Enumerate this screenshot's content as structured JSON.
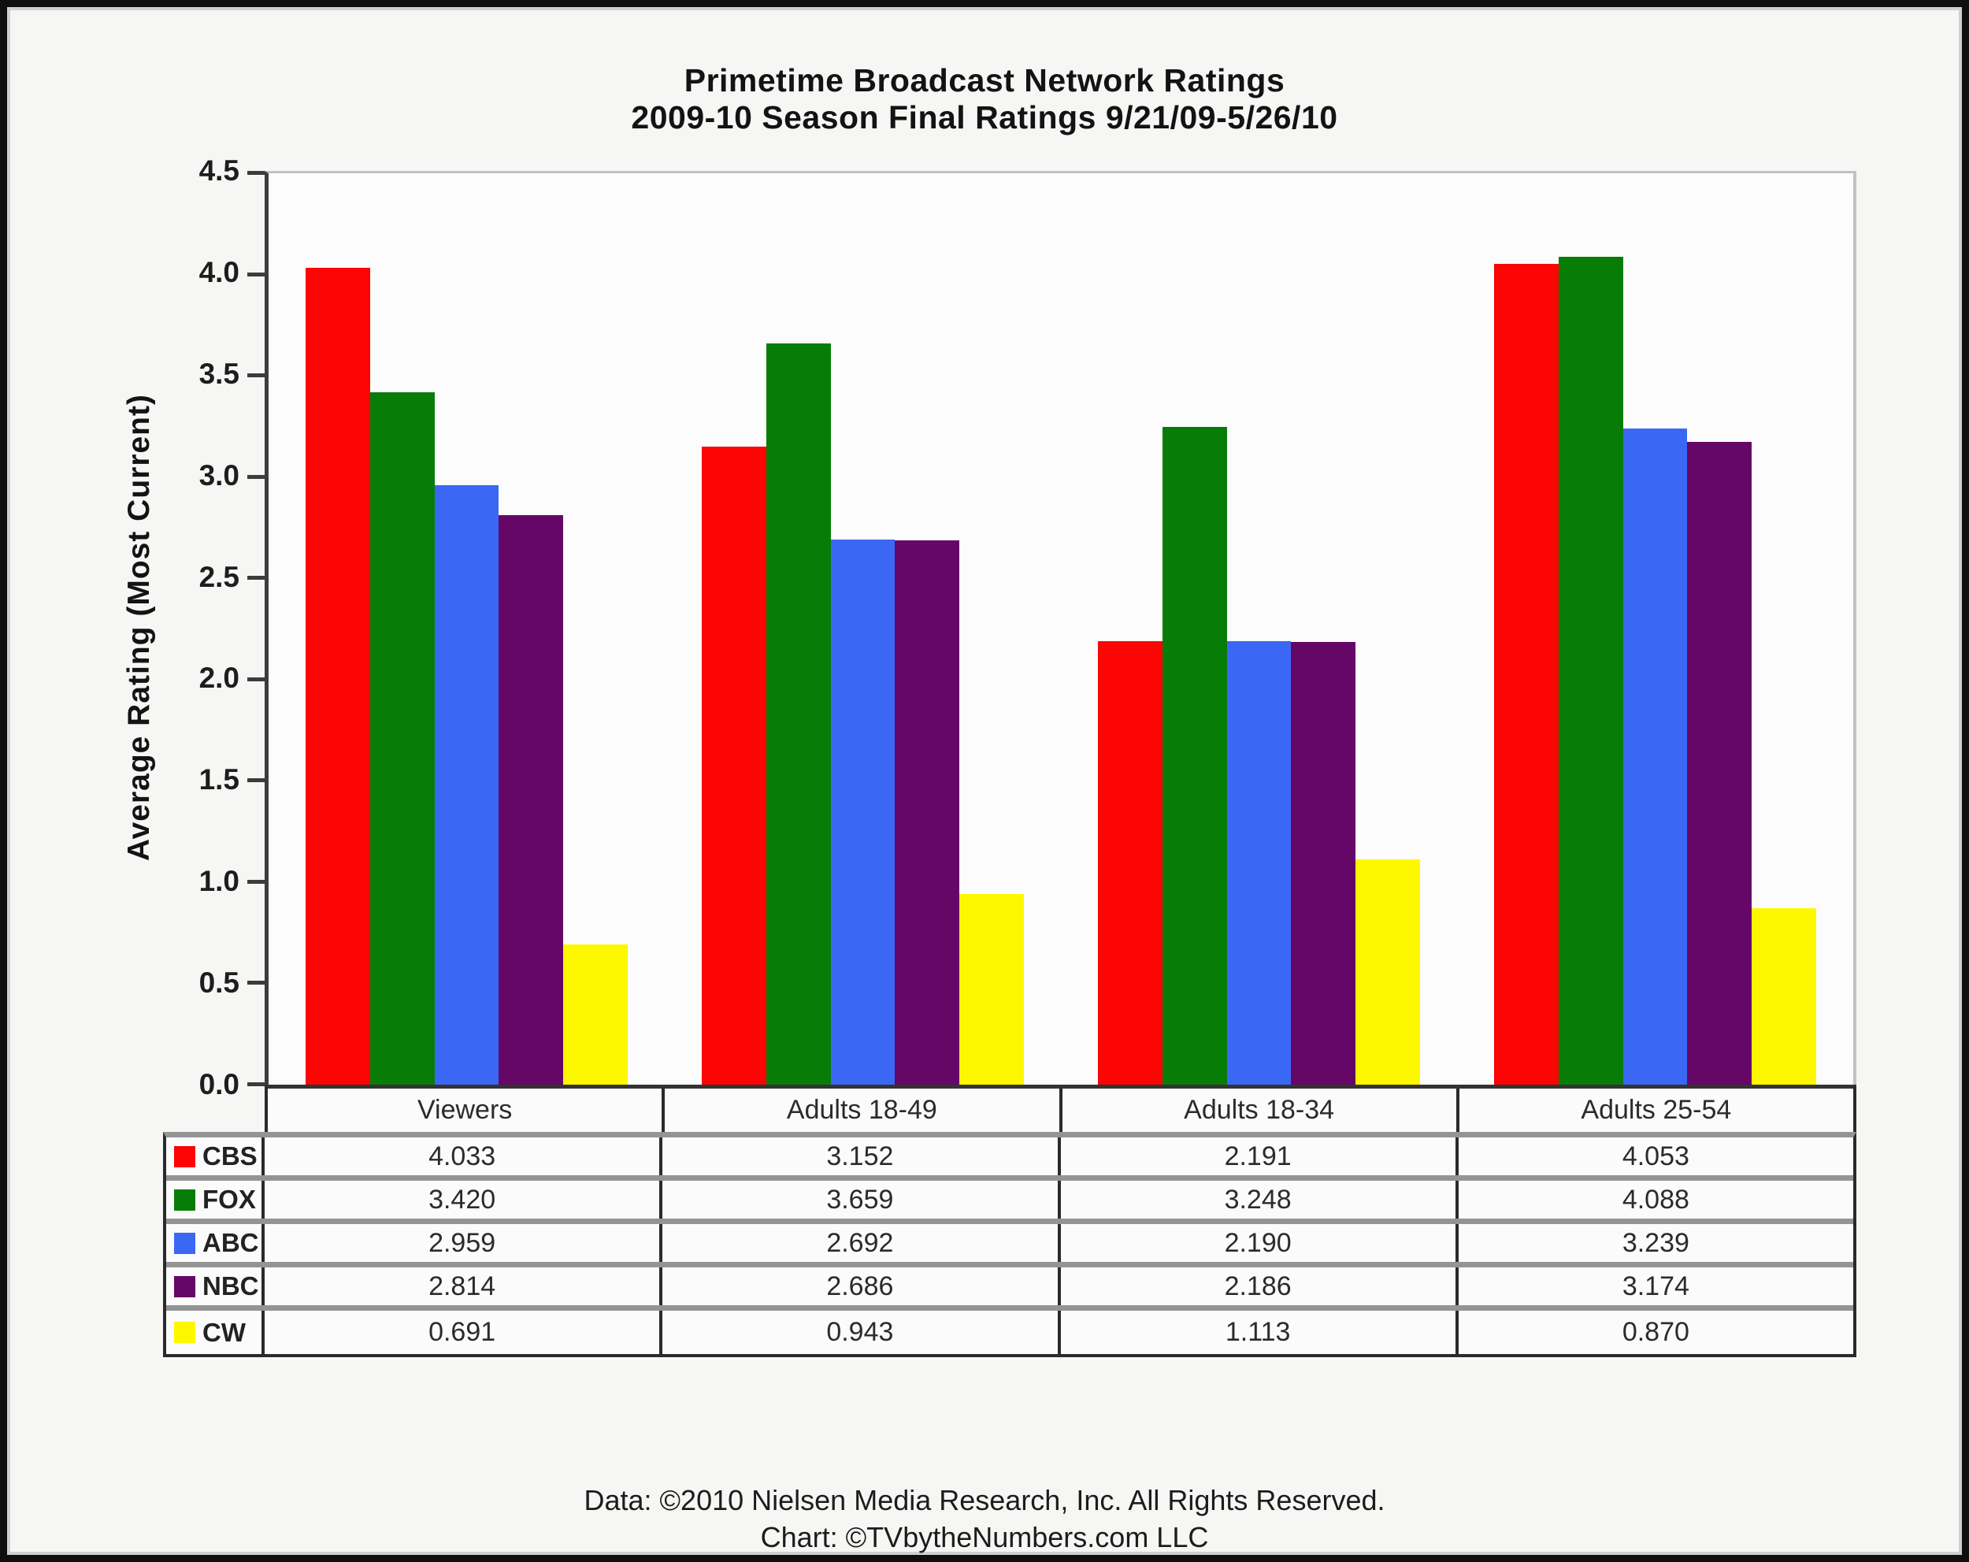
{
  "chart_data": {
    "type": "bar",
    "title": "Primetime Broadcast Network Ratings",
    "subtitle": "2009-10 Season Final Ratings 9/21/09-5/26/10",
    "ylabel": "Average Rating (Most Current)",
    "ylim": [
      0.0,
      4.5
    ],
    "ytick_labels": [
      "0.0",
      "0.5",
      "1.0",
      "1.5",
      "2.0",
      "2.5",
      "3.0",
      "3.5",
      "4.0",
      "4.5"
    ],
    "grid": false,
    "legend_position": "table-rows-left",
    "categories": [
      "Viewers",
      "Adults 18-49",
      "Adults 18-34",
      "Adults 25-54"
    ],
    "series": [
      {
        "name": "CBS",
        "color": "#fb0505",
        "values": [
          4.033,
          3.152,
          2.191,
          4.053
        ],
        "values_text": [
          "4.033",
          "3.152",
          "2.191",
          "4.053"
        ]
      },
      {
        "name": "FOX",
        "color": "#077d07",
        "values": [
          3.42,
          3.659,
          3.248,
          4.088
        ],
        "values_text": [
          "3.420",
          "3.659",
          "3.248",
          "4.088"
        ]
      },
      {
        "name": "ABC",
        "color": "#3b67f5",
        "values": [
          2.959,
          2.692,
          2.19,
          3.239
        ],
        "values_text": [
          "2.959",
          "2.692",
          "2.190",
          "3.239"
        ]
      },
      {
        "name": "NBC",
        "color": "#650766",
        "values": [
          2.814,
          2.686,
          2.186,
          3.174
        ],
        "values_text": [
          "2.814",
          "2.686",
          "2.186",
          "3.174"
        ]
      },
      {
        "name": "CW",
        "color": "#fdf800",
        "values": [
          0.691,
          0.943,
          1.113,
          0.87
        ],
        "values_text": [
          "0.691",
          "0.943",
          "1.113",
          "0.870"
        ]
      }
    ]
  },
  "footer": {
    "line1": "Data: ©2010 Nielsen Media Research, Inc. All Rights Reserved.",
    "line2": "Chart: ©TVbytheNumbers.com LLC"
  }
}
